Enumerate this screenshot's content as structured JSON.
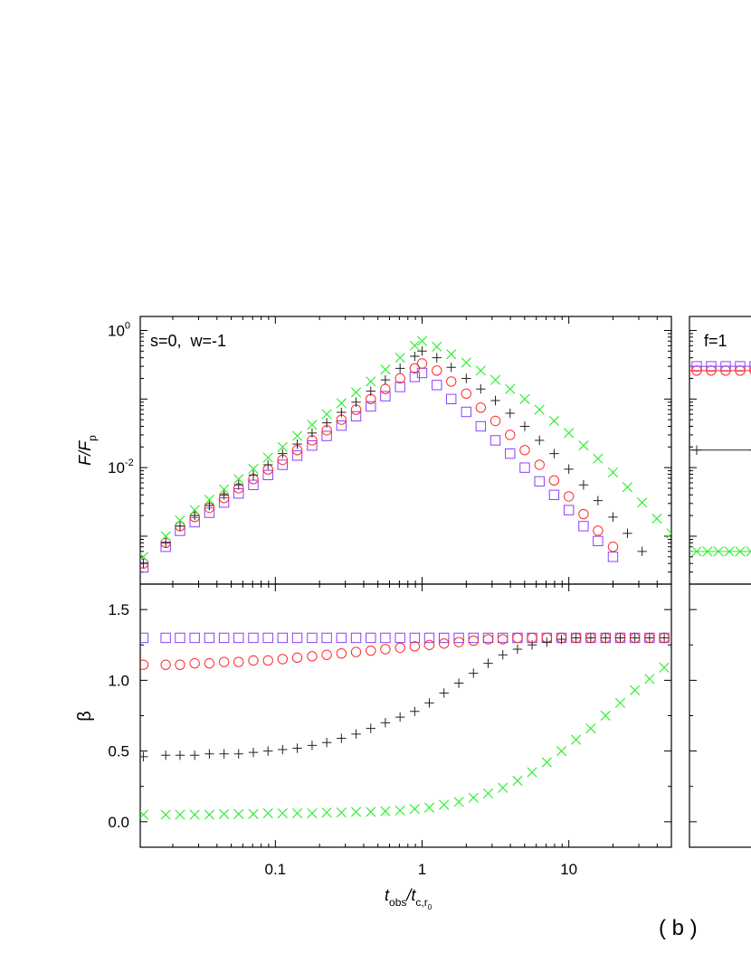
{
  "figure": {
    "panel_label": "( b )",
    "right_panel_annotation": "f=1"
  },
  "chart_data": [
    {
      "type": "scatter",
      "panel": "top-left",
      "annotation": "s=0,  w=-1",
      "xscale": "log",
      "yscale": "log",
      "xlim": [
        0.012,
        50
      ],
      "ylim": [
        0.0002,
        1.6
      ],
      "ylabel_main": "F/F",
      "ylabel_sub": "p",
      "xticks": [
        {
          "value": 0.1,
          "label": ""
        },
        {
          "value": 1,
          "label": ""
        },
        {
          "value": 10,
          "label": ""
        }
      ],
      "yticks": [
        {
          "value": 1,
          "base": "10",
          "exp": "0"
        },
        {
          "value": 0.01,
          "base": "10",
          "exp": "-2"
        }
      ],
      "series": [
        {
          "marker": "square",
          "color": "#8a3ffc",
          "x": [
            0.0126,
            0.0179,
            0.0224,
            0.0282,
            0.0355,
            0.0447,
            0.0562,
            0.0708,
            0.0891,
            0.112,
            0.141,
            0.178,
            0.224,
            0.282,
            0.355,
            0.447,
            0.562,
            0.708,
            0.891,
            1.0,
            1.26,
            1.58,
            2.0,
            2.51,
            3.16,
            3.98,
            5.01,
            6.31,
            7.94,
            10,
            12.6,
            15.8,
            20
          ],
          "y": [
            0.00035,
            0.0007,
            0.0012,
            0.0016,
            0.0022,
            0.0031,
            0.0042,
            0.0056,
            0.0078,
            0.011,
            0.015,
            0.021,
            0.029,
            0.041,
            0.056,
            0.078,
            0.11,
            0.15,
            0.21,
            0.24,
            0.16,
            0.1,
            0.065,
            0.04,
            0.025,
            0.016,
            0.01,
            0.0063,
            0.004,
            0.0024,
            0.0014,
            0.00085,
            0.0005
          ]
        },
        {
          "marker": "circle",
          "color": "#ff2a2a",
          "x": [
            0.0126,
            0.0179,
            0.0224,
            0.0282,
            0.0355,
            0.0447,
            0.0562,
            0.0708,
            0.0891,
            0.112,
            0.141,
            0.178,
            0.224,
            0.282,
            0.355,
            0.447,
            0.562,
            0.708,
            0.891,
            1.0,
            1.26,
            1.58,
            2.0,
            2.51,
            3.16,
            3.98,
            5.01,
            6.31,
            7.94,
            10,
            12.6,
            15.8,
            20
          ],
          "y": [
            0.0004,
            0.0008,
            0.0014,
            0.0019,
            0.0026,
            0.0036,
            0.005,
            0.0068,
            0.0094,
            0.013,
            0.018,
            0.025,
            0.035,
            0.05,
            0.07,
            0.1,
            0.14,
            0.2,
            0.28,
            0.33,
            0.26,
            0.18,
            0.12,
            0.075,
            0.048,
            0.03,
            0.018,
            0.011,
            0.0065,
            0.0038,
            0.0021,
            0.0012,
            0.0007
          ]
        },
        {
          "marker": "plus",
          "color": "#222222",
          "x": [
            0.0126,
            0.0179,
            0.0224,
            0.0282,
            0.0355,
            0.0447,
            0.0562,
            0.0708,
            0.0891,
            0.112,
            0.141,
            0.178,
            0.224,
            0.282,
            0.355,
            0.447,
            0.562,
            0.708,
            0.891,
            1.0,
            1.26,
            1.58,
            2.0,
            2.51,
            3.16,
            3.98,
            5.01,
            6.31,
            7.94,
            10,
            12.6,
            15.8,
            20,
            25.1,
            31.6
          ],
          "y": [
            0.0004,
            0.0008,
            0.0014,
            0.002,
            0.0028,
            0.004,
            0.0056,
            0.0078,
            0.011,
            0.016,
            0.022,
            0.032,
            0.045,
            0.064,
            0.09,
            0.13,
            0.19,
            0.28,
            0.42,
            0.5,
            0.4,
            0.29,
            0.2,
            0.14,
            0.095,
            0.062,
            0.04,
            0.025,
            0.016,
            0.0095,
            0.0056,
            0.0033,
            0.0019,
            0.0011,
            0.0006
          ]
        },
        {
          "marker": "x",
          "color": "#33ee33",
          "x": [
            0.0126,
            0.0179,
            0.0224,
            0.0282,
            0.0355,
            0.0447,
            0.0562,
            0.0708,
            0.0891,
            0.112,
            0.141,
            0.178,
            0.224,
            0.282,
            0.355,
            0.447,
            0.562,
            0.708,
            0.891,
            1.0,
            1.26,
            1.58,
            2.0,
            2.51,
            3.16,
            3.98,
            5.01,
            6.31,
            7.94,
            10,
            12.6,
            15.8,
            20,
            25.1,
            31.6,
            39.8,
            50
          ],
          "y": [
            0.0005,
            0.001,
            0.0017,
            0.0024,
            0.0034,
            0.0048,
            0.0068,
            0.0096,
            0.014,
            0.02,
            0.029,
            0.042,
            0.06,
            0.087,
            0.125,
            0.18,
            0.27,
            0.4,
            0.6,
            0.7,
            0.58,
            0.45,
            0.34,
            0.26,
            0.19,
            0.14,
            0.1,
            0.07,
            0.048,
            0.032,
            0.021,
            0.0135,
            0.0085,
            0.0052,
            0.0031,
            0.0018,
            0.0011
          ]
        }
      ]
    },
    {
      "type": "scatter",
      "panel": "bottom-left",
      "xscale": "log",
      "yscale": "linear",
      "xlim": [
        0.012,
        50
      ],
      "ylim": [
        -0.18,
        1.68
      ],
      "ylabel": "β",
      "xlabel_main_1": "t",
      "xlabel_sub_1": "obs",
      "xlabel_main_2": "/t",
      "xlabel_sub_2": "c,r",
      "xlabel_subsub_2": "0",
      "xticks": [
        {
          "value": 0.1,
          "label": "0.1"
        },
        {
          "value": 1,
          "label": "1"
        },
        {
          "value": 10,
          "label": "10"
        }
      ],
      "yticks": [
        {
          "value": 0.0,
          "label": "0.0"
        },
        {
          "value": 0.5,
          "label": "0.5"
        },
        {
          "value": 1.0,
          "label": "1.0"
        },
        {
          "value": 1.5,
          "label": "1.5"
        }
      ],
      "series": [
        {
          "marker": "square",
          "color": "#8a3ffc",
          "x": [
            0.0126,
            0.0179,
            0.0224,
            0.0282,
            0.0355,
            0.0447,
            0.0562,
            0.0708,
            0.0891,
            0.112,
            0.141,
            0.178,
            0.224,
            0.282,
            0.355,
            0.447,
            0.562,
            0.708,
            0.891,
            1.12,
            1.41,
            1.78,
            2.24,
            2.82,
            3.55,
            4.47,
            5.62,
            7.08,
            8.91,
            11.2,
            14.1,
            17.8,
            22.4,
            28.2,
            35.5,
            44.7
          ],
          "y": [
            1.3,
            1.3,
            1.3,
            1.3,
            1.3,
            1.3,
            1.3,
            1.3,
            1.3,
            1.3,
            1.3,
            1.3,
            1.3,
            1.3,
            1.3,
            1.3,
            1.3,
            1.3,
            1.3,
            1.3,
            1.3,
            1.3,
            1.3,
            1.3,
            1.3,
            1.3,
            1.3,
            1.3,
            1.3,
            1.3,
            1.3,
            1.3,
            1.3,
            1.3,
            1.3,
            1.3
          ]
        },
        {
          "marker": "circle",
          "color": "#ff2a2a",
          "x": [
            0.0126,
            0.0179,
            0.0224,
            0.0282,
            0.0355,
            0.0447,
            0.0562,
            0.0708,
            0.0891,
            0.112,
            0.141,
            0.178,
            0.224,
            0.282,
            0.355,
            0.447,
            0.562,
            0.708,
            0.891,
            1.12,
            1.41,
            1.78,
            2.24,
            2.82,
            3.55,
            4.47,
            5.62,
            7.08,
            8.91,
            11.2,
            14.1,
            17.8,
            22.4,
            28.2,
            35.5,
            44.7
          ],
          "y": [
            1.11,
            1.11,
            1.11,
            1.12,
            1.12,
            1.13,
            1.13,
            1.14,
            1.14,
            1.15,
            1.16,
            1.17,
            1.18,
            1.19,
            1.2,
            1.21,
            1.22,
            1.23,
            1.24,
            1.25,
            1.26,
            1.27,
            1.28,
            1.29,
            1.29,
            1.3,
            1.3,
            1.3,
            1.3,
            1.3,
            1.3,
            1.3,
            1.3,
            1.3,
            1.3,
            1.3
          ]
        },
        {
          "marker": "plus",
          "color": "#222222",
          "x": [
            0.0126,
            0.0179,
            0.0224,
            0.0282,
            0.0355,
            0.0447,
            0.0562,
            0.0708,
            0.0891,
            0.112,
            0.141,
            0.178,
            0.224,
            0.282,
            0.355,
            0.447,
            0.562,
            0.708,
            0.891,
            1.12,
            1.41,
            1.78,
            2.24,
            2.82,
            3.55,
            4.47,
            5.62,
            7.08,
            8.91,
            11.2,
            14.1,
            17.8,
            22.4,
            28.2,
            35.5,
            44.7
          ],
          "y": [
            0.46,
            0.47,
            0.47,
            0.47,
            0.48,
            0.48,
            0.48,
            0.49,
            0.5,
            0.51,
            0.52,
            0.54,
            0.56,
            0.59,
            0.62,
            0.66,
            0.7,
            0.74,
            0.78,
            0.84,
            0.91,
            0.98,
            1.05,
            1.12,
            1.18,
            1.22,
            1.25,
            1.27,
            1.29,
            1.3,
            1.3,
            1.3,
            1.3,
            1.3,
            1.3,
            1.3
          ]
        },
        {
          "marker": "x",
          "color": "#33ee33",
          "x": [
            0.0126,
            0.0179,
            0.0224,
            0.0282,
            0.0355,
            0.0447,
            0.0562,
            0.0708,
            0.0891,
            0.112,
            0.141,
            0.178,
            0.224,
            0.282,
            0.355,
            0.447,
            0.562,
            0.708,
            0.891,
            1.12,
            1.41,
            1.78,
            2.24,
            2.82,
            3.55,
            4.47,
            5.62,
            7.08,
            8.91,
            11.2,
            14.1,
            17.8,
            22.4,
            28.2,
            35.5,
            44.7
          ],
          "y": [
            0.05,
            0.05,
            0.05,
            0.05,
            0.05,
            0.055,
            0.055,
            0.055,
            0.06,
            0.06,
            0.06,
            0.06,
            0.065,
            0.065,
            0.07,
            0.07,
            0.075,
            0.08,
            0.09,
            0.1,
            0.12,
            0.14,
            0.17,
            0.2,
            0.24,
            0.29,
            0.35,
            0.42,
            0.5,
            0.58,
            0.66,
            0.75,
            0.84,
            0.93,
            1.01,
            1.09
          ]
        }
      ]
    },
    {
      "type": "scatter",
      "panel": "top-right-partial",
      "xscale": "log",
      "yscale": "log",
      "ylim": [
        0.0002,
        1.6
      ],
      "series": [
        {
          "marker": "square",
          "color": "#8a3ffc",
          "x_frac": [
            0.1,
            0.3,
            0.5,
            0.7,
            0.9
          ],
          "y": [
            0.3,
            0.3,
            0.3,
            0.3,
            0.3
          ]
        },
        {
          "marker": "circle",
          "color": "#ff2a2a",
          "x_frac": [
            0.1,
            0.3,
            0.5,
            0.7,
            0.9
          ],
          "y": [
            0.26,
            0.26,
            0.26,
            0.26,
            0.26
          ]
        },
        {
          "marker": "plus",
          "color": "#222222",
          "x_frac": [
            0.1,
            0.9
          ],
          "y": [
            0.018,
            0.018
          ]
        },
        {
          "marker": "x",
          "color": "#33ee33",
          "x_frac": [
            0.1,
            0.25,
            0.4,
            0.55,
            0.7,
            0.85
          ],
          "y": [
            0.0006,
            0.0006,
            0.0006,
            0.0006,
            0.0006,
            0.0006
          ]
        }
      ]
    }
  ]
}
